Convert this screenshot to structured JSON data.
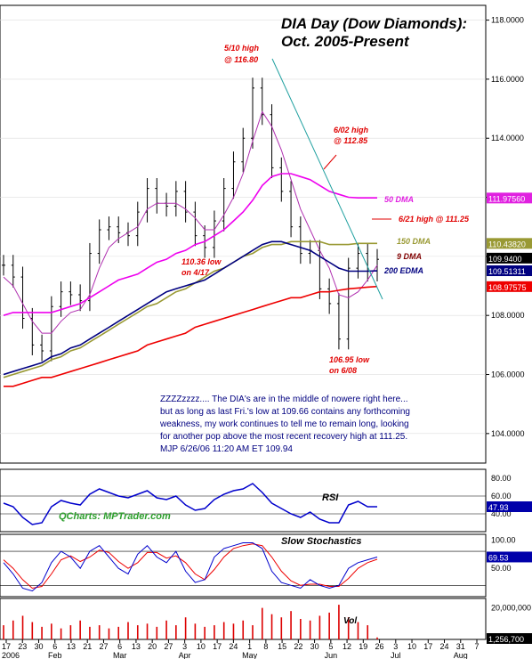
{
  "chart_data": {
    "type": "bar",
    "title_line1": "DIA Day (Dow Diamonds):",
    "title_line2": "Oct. 2005-Present",
    "price_axis": {
      "ylim": [
        103.0,
        118.5
      ],
      "ticks": [
        104.0,
        106.0,
        108.0,
        110.0,
        112.0,
        114.0,
        116.0,
        118.0
      ],
      "tick_labels": [
        "104.0000",
        "106.0000",
        "108.0000",
        "110.0000",
        "112.0000",
        "114.0000",
        "116.0000",
        "118.0000"
      ]
    },
    "value_tags": [
      {
        "label": "111.97560",
        "value": 111.9756,
        "color": "#e020e0"
      },
      {
        "label": "110.43820",
        "value": 110.4382,
        "color": "#999933"
      },
      {
        "label": "109.9400",
        "value": 109.94,
        "color": "#000000"
      },
      {
        "label": "109.51311",
        "value": 109.5131,
        "color": "#000080"
      },
      {
        "label": "108.97575",
        "value": 108.9758,
        "color": "#ee0000"
      }
    ],
    "x_axis": {
      "day_labels": [
        "17",
        "23",
        "30",
        "6",
        "13",
        "21",
        "27",
        "6",
        "13",
        "20",
        "27",
        "3",
        "10",
        "17",
        "24",
        "1",
        "8",
        "15",
        "22",
        "30",
        "5",
        "12",
        "19",
        "26",
        "3",
        "10",
        "17",
        "24",
        "31",
        "7"
      ],
      "month_labels": [
        "2006",
        "Feb",
        "Mar",
        "Apr",
        "May",
        "Jun",
        "Jul",
        "Aug"
      ],
      "month_label_index": [
        0,
        3,
        7,
        11,
        15,
        20,
        24,
        28
      ]
    },
    "series": [
      {
        "name": "Price",
        "color": "#000000",
        "values": [
          109.7,
          109.3,
          107.9,
          107.0,
          106.8,
          108.3,
          108.8,
          108.7,
          108.5,
          110.1,
          110.9,
          111.0,
          110.8,
          110.7,
          111.5,
          112.3,
          111.8,
          111.7,
          112.2,
          111.5,
          110.7,
          110.3,
          111.2,
          112.3,
          113.2,
          114.0,
          115.7,
          114.8,
          113.0,
          112.2,
          111.0,
          110.1,
          110.2,
          108.9,
          108.4,
          107.2,
          109.6,
          110.1,
          109.5,
          109.9
        ]
      },
      {
        "name": "9 DMA",
        "color": "#b030b0",
        "values": [
          109.3,
          109.0,
          108.4,
          107.8,
          107.4,
          107.4,
          107.8,
          108.1,
          108.2,
          108.7,
          109.6,
          110.3,
          110.6,
          110.8,
          111.0,
          111.6,
          111.8,
          111.8,
          111.8,
          111.6,
          111.3,
          110.9,
          110.9,
          111.4,
          112.0,
          112.8,
          113.9,
          114.9,
          114.4,
          113.6,
          112.6,
          111.6,
          110.9,
          110.2,
          109.6,
          108.7,
          108.6,
          108.8,
          109.2,
          109.7
        ]
      },
      {
        "name": "50 DMA",
        "color": "#ee00ee",
        "values": [
          108.0,
          108.1,
          108.1,
          108.1,
          108.1,
          108.1,
          108.2,
          108.3,
          108.4,
          108.6,
          108.8,
          109.0,
          109.2,
          109.3,
          109.4,
          109.6,
          109.8,
          109.9,
          110.1,
          110.2,
          110.4,
          110.5,
          110.7,
          110.9,
          111.2,
          111.5,
          111.9,
          112.4,
          112.7,
          112.8,
          112.8,
          112.7,
          112.6,
          112.4,
          112.2,
          112.1,
          112.0,
          111.98,
          111.98,
          111.98
        ]
      },
      {
        "name": "150 DMA",
        "color": "#999933",
        "values": [
          105.9,
          106.0,
          106.1,
          106.2,
          106.3,
          106.5,
          106.6,
          106.8,
          106.9,
          107.1,
          107.3,
          107.5,
          107.7,
          107.9,
          108.1,
          108.3,
          108.4,
          108.6,
          108.8,
          108.9,
          109.1,
          109.3,
          109.5,
          109.6,
          109.8,
          110.0,
          110.1,
          110.3,
          110.4,
          110.4,
          110.5,
          110.5,
          110.5,
          110.5,
          110.4,
          110.4,
          110.4,
          110.44,
          110.44,
          110.44
        ]
      },
      {
        "name": "200 EDMA",
        "color": "#000080",
        "values": [
          106.0,
          106.1,
          106.2,
          106.3,
          106.4,
          106.6,
          106.7,
          106.9,
          107.0,
          107.2,
          107.4,
          107.6,
          107.8,
          108.0,
          108.2,
          108.4,
          108.6,
          108.8,
          108.9,
          109.0,
          109.1,
          109.2,
          109.4,
          109.6,
          109.8,
          110.0,
          110.2,
          110.4,
          110.5,
          110.5,
          110.4,
          110.3,
          110.2,
          110.0,
          109.8,
          109.6,
          109.5,
          109.5,
          109.5,
          109.51
        ]
      },
      {
        "name": "200 DMA red",
        "color": "#ee0000",
        "values": [
          105.6,
          105.6,
          105.7,
          105.8,
          105.9,
          105.9,
          106.0,
          106.1,
          106.2,
          106.3,
          106.4,
          106.5,
          106.6,
          106.7,
          106.8,
          107.0,
          107.1,
          107.2,
          107.3,
          107.4,
          107.6,
          107.7,
          107.8,
          107.9,
          108.0,
          108.1,
          108.2,
          108.3,
          108.4,
          108.5,
          108.6,
          108.6,
          108.7,
          108.8,
          108.8,
          108.85,
          108.9,
          108.93,
          108.96,
          108.98
        ]
      }
    ],
    "ma_labels": [
      {
        "text": "50 DMA",
        "color": "#e020e0"
      },
      {
        "text": "150 DMA",
        "color": "#999933"
      },
      {
        "text": "9 DMA",
        "color": "#800000"
      },
      {
        "text": "200 EDMA",
        "color": "#000080"
      }
    ],
    "annotations": {
      "high_510": [
        "5/10 high",
        "@ 116.80"
      ],
      "high_602": [
        "6/02 high",
        "@ 112.85"
      ],
      "high_621": "6/21 high @ 111.25",
      "low_417": [
        "110.36 low",
        "on 4/17"
      ],
      "low_608": [
        "106.95 low",
        "on 6/08"
      ]
    },
    "commentary": [
      "ZZZZzzzz.... The DIA's are in the middle of nowere right here...",
      "but as long as last Fri.'s low at 109.66 contains any forthcoming",
      "weakness, my work continues to tell me to remain long, looking",
      "for another pop above the most recent recovery high at 111.25.",
      "MJP  6/26/06 11:20  AM  ET 109.94"
    ],
    "rsi": {
      "label": "RSI",
      "watermark": "QCharts: MPTrader.com",
      "ticks": [
        "80.00",
        "60.00",
        "40.00"
      ],
      "current": "47.93",
      "ylim": [
        20,
        90
      ],
      "values": [
        52,
        48,
        36,
        28,
        30,
        48,
        55,
        52,
        50,
        62,
        68,
        64,
        60,
        58,
        62,
        66,
        58,
        56,
        60,
        50,
        44,
        46,
        56,
        62,
        66,
        68,
        74,
        64,
        52,
        46,
        40,
        36,
        42,
        34,
        30,
        30,
        50,
        54,
        48,
        48
      ]
    },
    "stochastics": {
      "label": "Slow Stochastics",
      "ticks": [
        "100.00",
        "50.00"
      ],
      "current": "69.53",
      "ylim": [
        0,
        110
      ],
      "k_values": [
        60,
        40,
        15,
        10,
        25,
        60,
        80,
        70,
        50,
        80,
        90,
        70,
        50,
        40,
        75,
        90,
        70,
        60,
        80,
        45,
        25,
        30,
        70,
        85,
        90,
        95,
        95,
        85,
        45,
        25,
        20,
        15,
        30,
        20,
        15,
        20,
        50,
        60,
        65,
        70
      ],
      "d_values": [
        65,
        50,
        30,
        15,
        18,
        40,
        65,
        72,
        62,
        70,
        82,
        78,
        62,
        50,
        60,
        78,
        78,
        68,
        72,
        60,
        40,
        30,
        48,
        70,
        85,
        90,
        93,
        90,
        70,
        45,
        28,
        20,
        22,
        22,
        18,
        18,
        32,
        50,
        60,
        66
      ]
    },
    "volume": {
      "label": "Vol",
      "ticks": [
        "20,000,000"
      ],
      "current": "1,256,700",
      "ylim": [
        0,
        26000000
      ],
      "values": [
        9000000,
        12000000,
        15000000,
        11000000,
        8000000,
        10000000,
        7000000,
        9000000,
        12000000,
        8000000,
        9000000,
        7000000,
        8000000,
        11000000,
        9000000,
        10000000,
        8000000,
        12000000,
        9000000,
        14000000,
        10000000,
        8000000,
        9000000,
        11000000,
        10000000,
        12000000,
        9000000,
        20000000,
        16000000,
        14000000,
        18000000,
        13000000,
        12000000,
        15000000,
        17000000,
        22000000,
        14000000,
        11000000,
        9000000,
        1256700
      ]
    }
  }
}
